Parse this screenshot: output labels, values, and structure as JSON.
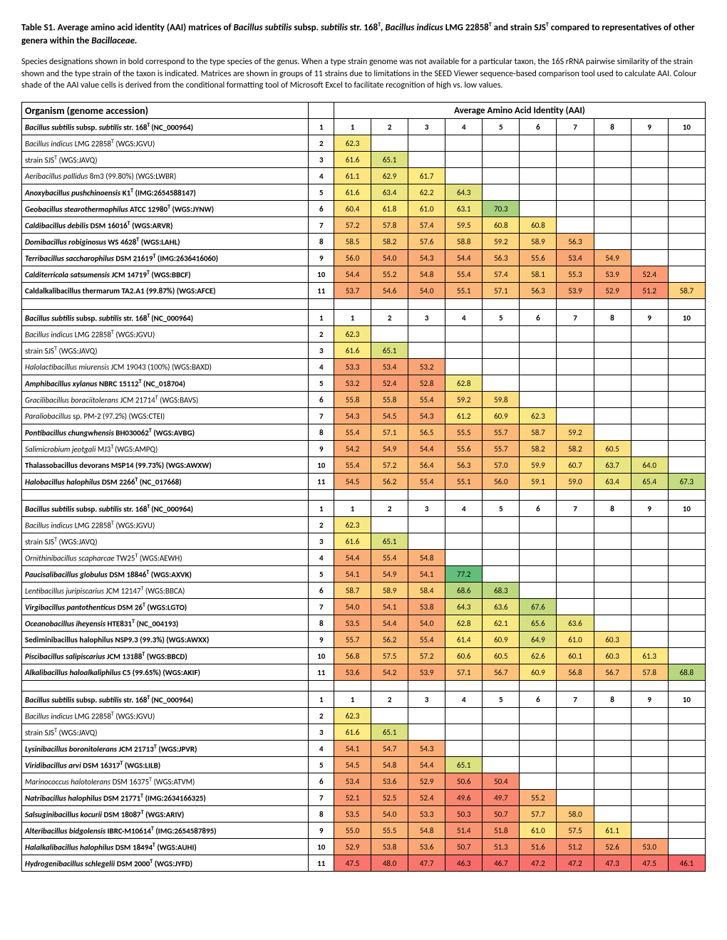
{
  "title_parts": {
    "p1": "Table S1. Average amino acid identity (AAI) matrices of ",
    "p2": "Bacillus subtilis ",
    "p3": " subsp. ",
    "p4": "subtilis ",
    "p5": " str. 168",
    "p6": ", ",
    "p7": "Bacillus indicus ",
    "p8": " LMG 22858",
    "p9": " and strain SJS",
    "p10": " compared to representatives of other genera within the ",
    "p11": "Bacillaceae."
  },
  "description": "Species designations shown in bold correspond to the type species of the genus. When a type strain genome was not available for a particular taxon, the 16S rRNA pairwise similarity of the strain shown and the type strain of the taxon is indicated. Matrices are shown in groups of 11 strains due to limitations in the SEED Viewer sequence-based comparison tool used to calculate AAI. Colour shade of the AAI value cells is derived from the conditional formatting tool of Microsoft Excel to facilitate recognition of high vs. low values.",
  "header_organism": "Organism (genome accession)",
  "header_aai": "Average Amino Acid Identity (AAI)",
  "col_min": 46.1,
  "col_max": 77.2,
  "color_low": "#f8696b",
  "color_mid": "#ffeb84",
  "color_high": "#63be7b",
  "groups": [
    {
      "rows": [
        {
          "n": 1,
          "label_html": "<span class='italic bold'>Bacillus subtilis</span><span class='bold'> subsp. </span><span class='italic bold'>subtilis</span><span class='bold'> str. 168</span><span class='sup bold'>T </span><span class='bold'>(NC_000964)</span>",
          "vals": [
            "1",
            "2",
            "3",
            "4",
            "5",
            "6",
            "7",
            "8",
            "9",
            "10"
          ],
          "is_header": true
        },
        {
          "n": 2,
          "label_html": "<span class='italic'>Bacillus indicus</span> LMG 22858<span class='sup'>T</span>  (WGS:JGVU)",
          "vals": [
            62.3
          ]
        },
        {
          "n": 3,
          "label_html": "strain  SJS<span class='sup'>T</span> (WGS:JAVQ)",
          "vals": [
            61.6,
            65.1
          ]
        },
        {
          "n": 4,
          "label_html": "<span class='italic'>Aeribacillus pallidus</span>  8m3 (99.80%) (WGS:LWBR)",
          "vals": [
            61.1,
            62.9,
            61.7
          ]
        },
        {
          "n": 5,
          "label_html": "<span class='italic bold'>Anoxybacillus pushchinoensis</span><span class='bold'>  K1</span><span class='sup bold'>T</span><span class='bold'> (IMG:2654588147)</span>",
          "vals": [
            61.6,
            63.4,
            62.2,
            64.3
          ]
        },
        {
          "n": 6,
          "label_html": "<span class='italic bold'>Geobacillus stearothermophilus</span><span class='bold'>  ATCC 12980</span><span class='sup bold'>T</span><span class='bold'> (WGS:JYNW)</span>",
          "vals": [
            60.4,
            61.8,
            61.0,
            63.1,
            70.3
          ]
        },
        {
          "n": 7,
          "label_html": "<span class='italic bold'>Caldibacillus debilis</span><span class='bold'>  DSM 16016</span><span class='sup bold'>T</span><span class='bold'> (WGS:ARVR)</span>",
          "vals": [
            57.2,
            57.8,
            57.4,
            59.5,
            60.8,
            60.8
          ]
        },
        {
          "n": 8,
          "label_html": "<span class='italic bold'>Domibacillus robiginosus</span><span class='bold'>  WS 4628</span><span class='sup bold'>T</span><span class='bold'> (WGS:LAHL)</span>",
          "vals": [
            58.5,
            58.2,
            57.6,
            58.8,
            59.2,
            58.9,
            56.3
          ]
        },
        {
          "n": 9,
          "label_html": "<span class='italic bold'>Terribacillus saccharophilus</span><span class='bold'>  DSM 21619</span><span class='sup bold'>T</span><span class='bold'> (IMG:2636416060)</span>",
          "vals": [
            56.0,
            54.0,
            54.3,
            54.4,
            56.3,
            55.6,
            53.4,
            54.9
          ]
        },
        {
          "n": 10,
          "label_html": "<span class='italic bold'>Calditerricola satsumensis</span><span class='bold'>  JCM 14719</span><span class='sup bold'>T</span><span class='bold'> (WGS:BBCF)</span>",
          "vals": [
            54.4,
            55.2,
            54.8,
            55.4,
            57.4,
            58.1,
            55.3,
            53.9,
            52.4
          ]
        },
        {
          "n": 11,
          "label_html": "<span class='bold'>Caldalkalibacillus thermarum  TA2.A1 (99.87%) (WGS:AFCE)</span>",
          "vals": [
            53.7,
            54.6,
            54.0,
            55.1,
            57.1,
            56.3,
            53.9,
            52.9,
            51.2,
            58.7
          ]
        }
      ]
    },
    {
      "rows": [
        {
          "n": 1,
          "label_html": "<span class='italic bold'>Bacillus subtilis</span><span class='bold'> subsp. </span><span class='italic bold'>subtilis</span><span class='bold'> str. 168</span><span class='sup bold'>T </span><span class='bold'>(NC_000964)</span>",
          "vals": [
            "1",
            "2",
            "3",
            "4",
            "5",
            "6",
            "7",
            "8",
            "9",
            "10"
          ],
          "is_header": true
        },
        {
          "n": 2,
          "label_html": "<span class='italic'>Bacillus indicus</span> LMG 22858<span class='sup'>T</span>  (WGS:JGVU)",
          "vals": [
            62.3
          ]
        },
        {
          "n": 3,
          "label_html": "strain  SJS<span class='sup'>T</span> (WGS:JAVQ)",
          "vals": [
            61.6,
            65.1
          ]
        },
        {
          "n": 4,
          "label_html": "<span class='italic'>Halolactibacillus miurensis</span> JCM 19043  (100%) (WGS:BAXD)",
          "vals": [
            53.3,
            53.4,
            53.2
          ]
        },
        {
          "n": 5,
          "label_html": "<span class='italic bold'>Amphibacillus xylanus</span><span class='bold'>  NBRC 15112</span><span class='sup bold'>T</span><span class='bold'> (NC_018704)</span>",
          "vals": [
            53.2,
            52.4,
            52.8,
            62.8
          ]
        },
        {
          "n": 6,
          "label_html": "<span class='italic'>Gracilibacillus boraciitolerans</span> JCM 21714<span class='sup'>T</span> (WGS:BAVS)",
          "vals": [
            55.8,
            55.8,
            55.4,
            59.2,
            59.8
          ]
        },
        {
          "n": 7,
          "label_html": "<span class='italic'>Paraliobacillus</span> sp. PM-2 (97.2%) (WGS:CTEI)",
          "vals": [
            54.3,
            54.5,
            54.3,
            61.2,
            60.9,
            62.3
          ]
        },
        {
          "n": 8,
          "label_html": "<span class='italic bold'>Pontibacillus chungwhensis</span><span class='bold'>  BH030062</span><span class='sup bold'>T</span><span class='bold'> (WGS:AVBG)</span>",
          "vals": [
            55.4,
            57.1,
            56.5,
            55.5,
            55.7,
            58.7,
            59.2
          ]
        },
        {
          "n": 9,
          "label_html": "<span class='italic'>Salimicrobium jeotgali</span>  MJ3<span class='sup'>T </span>(WGS:AMPQ)",
          "vals": [
            54.2,
            54.9,
            54.4,
            55.6,
            55.7,
            58.2,
            58.2,
            60.5
          ]
        },
        {
          "n": 10,
          "label_html": "<span class='bold'>Thalassobacillus devorans MSP14 (99.73%) (WGS:AWXW)</span>",
          "vals": [
            55.4,
            57.2,
            56.4,
            56.3,
            57.0,
            59.9,
            60.7,
            63.7,
            64.0
          ]
        },
        {
          "n": 11,
          "label_html": "<span class='italic bold'>Halobacillus halophilus</span><span class='bold'>  DSM 2266</span><span class='sup bold'>T</span><span class='bold'> (NC_017668)</span>",
          "vals": [
            54.5,
            56.2,
            55.4,
            55.1,
            56.0,
            59.1,
            59.0,
            63.4,
            65.4,
            67.3
          ]
        }
      ]
    },
    {
      "rows": [
        {
          "n": 1,
          "label_html": "<span class='italic bold'>Bacillus subtilis</span><span class='bold'> subsp. </span><span class='italic bold'>subtilis</span><span class='bold'> str. 168</span><span class='sup bold'>T </span><span class='bold'>(NC_000964)</span>",
          "vals": [
            "1",
            "2",
            "3",
            "4",
            "5",
            "6",
            "7",
            "8",
            "9",
            "10"
          ],
          "is_header": true
        },
        {
          "n": 2,
          "label_html": "<span class='italic'>Bacillus indicus</span> LMG 22858<span class='sup'>T</span>  (WGS:JGVU)",
          "vals": [
            62.3
          ]
        },
        {
          "n": 3,
          "label_html": "strain  SJS<span class='sup'>T</span> (WGS:JAVQ)",
          "vals": [
            61.6,
            65.1
          ]
        },
        {
          "n": 4,
          "label_html": "<span class='italic'>Ornithinibacillus scapharcae</span>  TW25<span class='sup'>T</span> (WGS:AEWH)",
          "vals": [
            54.4,
            55.4,
            54.8
          ]
        },
        {
          "n": 5,
          "label_html": "<span class='italic bold'>Paucisalibacillus globulus</span><span class='bold'>  DSM 18846</span><span class='sup bold'>T</span><span class='bold'> (WGS:AXVK)</span>",
          "vals": [
            54.1,
            54.9,
            54.1,
            77.2
          ]
        },
        {
          "n": 6,
          "label_html": "<span class='italic'>Lentibacillus juripiscarius</span>  JCM 12147<span class='sup'>T</span> (WGS:BBCA)",
          "vals": [
            58.7,
            58.9,
            58.4,
            68.6,
            68.3
          ]
        },
        {
          "n": 7,
          "label_html": "<span class='italic bold'>Virgibacillus pantothenticus</span><span class='bold'>  DSM 26</span><span class='sup bold'>T</span><span class='bold'> (WGS:LGTO)</span>",
          "vals": [
            54.0,
            54.1,
            53.8,
            64.3,
            63.6,
            67.6
          ]
        },
        {
          "n": 8,
          "label_html": "<span class='italic bold'>Oceanobacillus iheyensis</span><span class='bold'>  HTE831</span><span class='sup bold'>T</span><span class='bold'> (NC_004193)</span>",
          "vals": [
            53.5,
            54.4,
            54.0,
            62.8,
            62.1,
            65.6,
            63.6
          ]
        },
        {
          "n": 9,
          "label_html": "<span class='bold'>Sediminibacillus halophilus NSP9.3 (99.3%) (WGS:AWXX)</span>",
          "vals": [
            55.7,
            56.2,
            55.4,
            61.4,
            60.9,
            64.9,
            61.0,
            60.3
          ]
        },
        {
          "n": 10,
          "label_html": "<span class='italic bold'>Piscibacillus salipiscarius</span><span class='bold'>  JCM 13188</span><span class='sup bold'>T</span><span class='bold'> (WGS:BBCD)</span>",
          "vals": [
            56.8,
            57.5,
            57.2,
            60.6,
            60.5,
            62.6,
            60.1,
            60.3,
            61.3
          ]
        },
        {
          "n": 11,
          "label_html": "<span class='italic bold'>Alkalibacillus haloalkaliphilus</span><span class='bold'>  C5 (99.65%) (WGS:AKIF)</span>",
          "vals": [
            53.6,
            54.2,
            53.9,
            57.1,
            56.7,
            60.9,
            56.8,
            56.7,
            57.8,
            68.8
          ]
        }
      ]
    },
    {
      "rows": [
        {
          "n": 1,
          "label_html": "<span class='italic bold'>Bacillus subtilis</span><span class='bold'> subsp. </span><span class='italic bold'>subtilis</span><span class='bold'> str. 168</span><span class='sup bold'>T </span><span class='bold'>(NC_000964)</span>",
          "vals": [
            "1",
            "2",
            "3",
            "4",
            "5",
            "6",
            "7",
            "8",
            "9",
            "10"
          ],
          "is_header": true
        },
        {
          "n": 2,
          "label_html": "<span class='italic'>Bacillus indicus</span> LMG 22858<span class='sup'>T</span>  (WGS:JGVU)",
          "vals": [
            62.3
          ]
        },
        {
          "n": 3,
          "label_html": "strain  SJS<span class='sup'>T</span> (WGS:JAVQ)",
          "vals": [
            61.6,
            65.1
          ]
        },
        {
          "n": 4,
          "label_html": "<span class='italic bold'>Lysinibacillus boronitolerans</span><span class='bold'>  JCM 21713</span><span class='sup bold'>T</span><span class='bold'> (WGS:JPVR)</span>",
          "vals": [
            54.1,
            54.7,
            54.3
          ]
        },
        {
          "n": 5,
          "label_html": "<span class='italic bold'>Viridibacillus arvi</span><span class='bold'>  DSM 16317</span><span class='sup bold'>T</span><span class='bold'> (WGS:LILB)</span>",
          "vals": [
            54.5,
            54.8,
            54.4,
            65.1
          ]
        },
        {
          "n": 6,
          "label_html": "<span class='italic'>Marinococcus halotolerans</span>  DSM 16375<span class='sup'>T</span> (WGS:ATVM)",
          "vals": [
            53.4,
            53.6,
            52.9,
            50.6,
            50.4
          ]
        },
        {
          "n": 7,
          "label_html": "<span class='italic bold'>Natribacillus halophilus</span><span class='bold'>  DSM 21771</span><span class='sup bold'>T</span><span class='bold'> (IMG:2634166325)</span>",
          "vals": [
            52.1,
            52.5,
            52.4,
            49.6,
            49.7,
            55.2
          ]
        },
        {
          "n": 8,
          "label_html": "<span class='italic bold'>Salsuginibacillus kocurii</span><span class='bold'>  DSM 18087</span><span class='sup bold'>T</span><span class='bold'> (WGS:ARIV)</span>",
          "vals": [
            53.5,
            54.0,
            53.3,
            50.3,
            50.7,
            57.7,
            58.0
          ]
        },
        {
          "n": 9,
          "label_html": "<span class='italic bold'>Alteribacillus bidgolensis</span><span class='bold'>  IBRC-M10614</span><span class='sup bold'>T</span><span class='bold'> (IMG:2654587895)</span>",
          "vals": [
            55.0,
            55.5,
            54.8,
            51.4,
            51.8,
            61.0,
            57.5,
            61.1
          ]
        },
        {
          "n": 10,
          "label_html": "<span class='italic bold'>Halalkalibacillus halophilus</span><span class='bold'>  DSM 18494</span><span class='sup bold'>T</span><span class='bold'> (WGS:AUHI)</span>",
          "vals": [
            52.9,
            53.8,
            53.6,
            50.7,
            51.3,
            51.6,
            51.2,
            52.6,
            53.0
          ]
        },
        {
          "n": 11,
          "label_html": "<span class='italic bold'>Hydrogenibacillus schlegelii</span><span class='bold'>  DSM 2000</span><span class='sup bold'>T</span><span class='bold'> (WGS:JYFD)</span>",
          "vals": [
            47.5,
            48.0,
            47.7,
            46.3,
            46.7,
            47.2,
            47.2,
            47.3,
            47.5,
            46.1
          ]
        }
      ]
    }
  ]
}
